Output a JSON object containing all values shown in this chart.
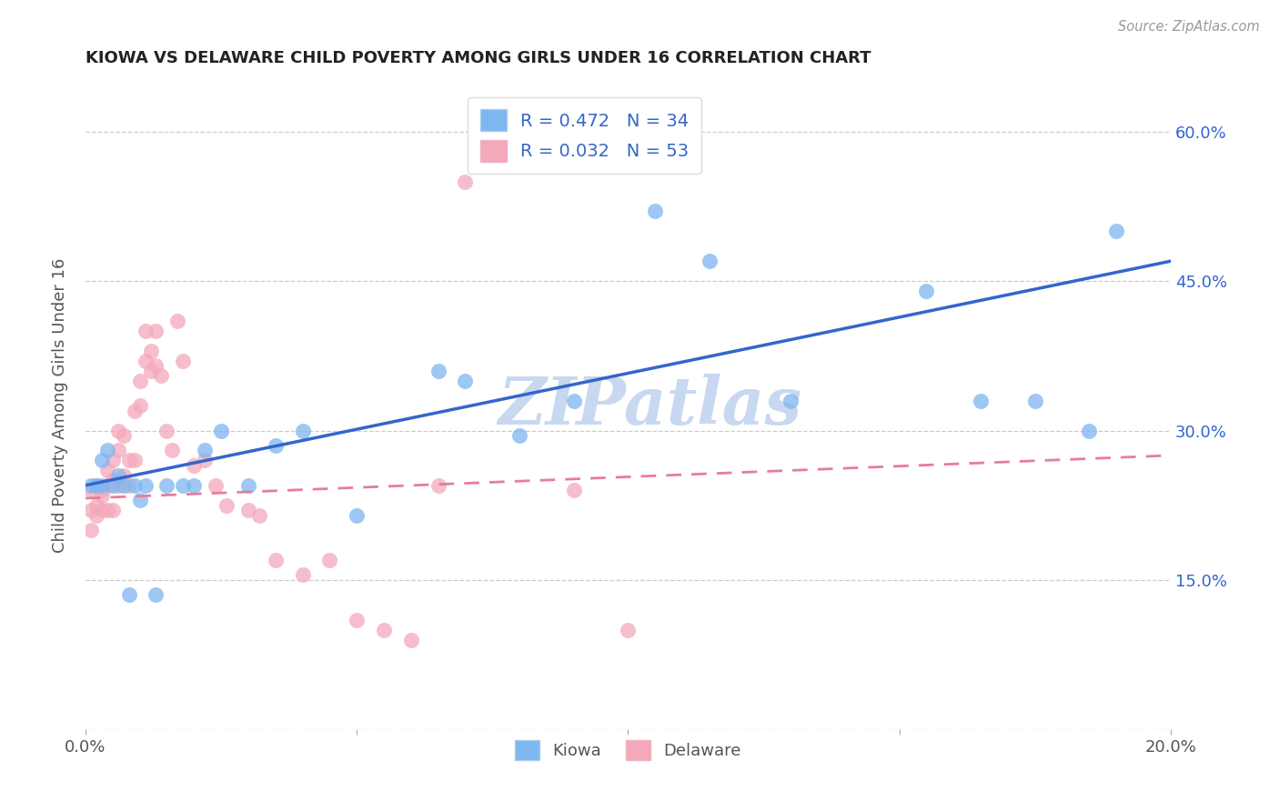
{
  "title": "KIOWA VS DELAWARE CHILD POVERTY AMONG GIRLS UNDER 16 CORRELATION CHART",
  "source": "Source: ZipAtlas.com",
  "ylabel": "Child Poverty Among Girls Under 16",
  "xlim": [
    0.0,
    0.2
  ],
  "ylim": [
    0.0,
    0.65
  ],
  "xticks": [
    0.0,
    0.05,
    0.1,
    0.15,
    0.2
  ],
  "xticklabels": [
    "0.0%",
    "",
    "",
    "",
    "20.0%"
  ],
  "yticks": [
    0.0,
    0.15,
    0.3,
    0.45,
    0.6
  ],
  "right_yticklabels": [
    "",
    "15.0%",
    "30.0%",
    "45.0%",
    "60.0%"
  ],
  "kiowa_color": "#7EB6F0",
  "delaware_color": "#F4A9BB",
  "kiowa_line_color": "#3366CC",
  "delaware_line_color": "#E87D96",
  "kiowa_R": 0.472,
  "kiowa_N": 34,
  "delaware_R": 0.032,
  "delaware_N": 53,
  "watermark": "ZIPatlas",
  "watermark_color": "#c8d8f0",
  "kiowa_trend_x0": 0.0,
  "kiowa_trend_y0": 0.245,
  "kiowa_trend_x1": 0.2,
  "kiowa_trend_y1": 0.47,
  "delaware_trend_x0": 0.0,
  "delaware_trend_y0": 0.232,
  "delaware_trend_x1": 0.2,
  "delaware_trend_y1": 0.275,
  "kiowa_x": [
    0.001,
    0.002,
    0.003,
    0.003,
    0.004,
    0.005,
    0.006,
    0.007,
    0.008,
    0.009,
    0.01,
    0.011,
    0.013,
    0.015,
    0.018,
    0.02,
    0.022,
    0.025,
    0.03,
    0.035,
    0.04,
    0.05,
    0.065,
    0.07,
    0.08,
    0.09,
    0.105,
    0.115,
    0.13,
    0.155,
    0.165,
    0.175,
    0.185,
    0.19
  ],
  "kiowa_y": [
    0.245,
    0.245,
    0.27,
    0.245,
    0.28,
    0.245,
    0.255,
    0.245,
    0.135,
    0.245,
    0.23,
    0.245,
    0.135,
    0.245,
    0.245,
    0.245,
    0.28,
    0.3,
    0.245,
    0.285,
    0.3,
    0.215,
    0.36,
    0.35,
    0.295,
    0.33,
    0.52,
    0.47,
    0.33,
    0.44,
    0.33,
    0.33,
    0.3,
    0.5
  ],
  "delaware_x": [
    0.001,
    0.001,
    0.001,
    0.002,
    0.002,
    0.002,
    0.003,
    0.003,
    0.003,
    0.004,
    0.004,
    0.004,
    0.005,
    0.005,
    0.005,
    0.006,
    0.006,
    0.006,
    0.007,
    0.007,
    0.008,
    0.008,
    0.009,
    0.009,
    0.01,
    0.01,
    0.011,
    0.011,
    0.012,
    0.012,
    0.013,
    0.013,
    0.014,
    0.015,
    0.016,
    0.017,
    0.018,
    0.02,
    0.022,
    0.024,
    0.026,
    0.03,
    0.032,
    0.035,
    0.04,
    0.045,
    0.05,
    0.055,
    0.06,
    0.065,
    0.07,
    0.09,
    0.1
  ],
  "delaware_y": [
    0.24,
    0.22,
    0.2,
    0.245,
    0.225,
    0.215,
    0.24,
    0.235,
    0.22,
    0.26,
    0.245,
    0.22,
    0.27,
    0.25,
    0.22,
    0.3,
    0.28,
    0.245,
    0.295,
    0.255,
    0.27,
    0.245,
    0.32,
    0.27,
    0.35,
    0.325,
    0.4,
    0.37,
    0.38,
    0.36,
    0.4,
    0.365,
    0.355,
    0.3,
    0.28,
    0.41,
    0.37,
    0.265,
    0.27,
    0.245,
    0.225,
    0.22,
    0.215,
    0.17,
    0.155,
    0.17,
    0.11,
    0.1,
    0.09,
    0.245,
    0.55,
    0.24,
    0.1
  ]
}
